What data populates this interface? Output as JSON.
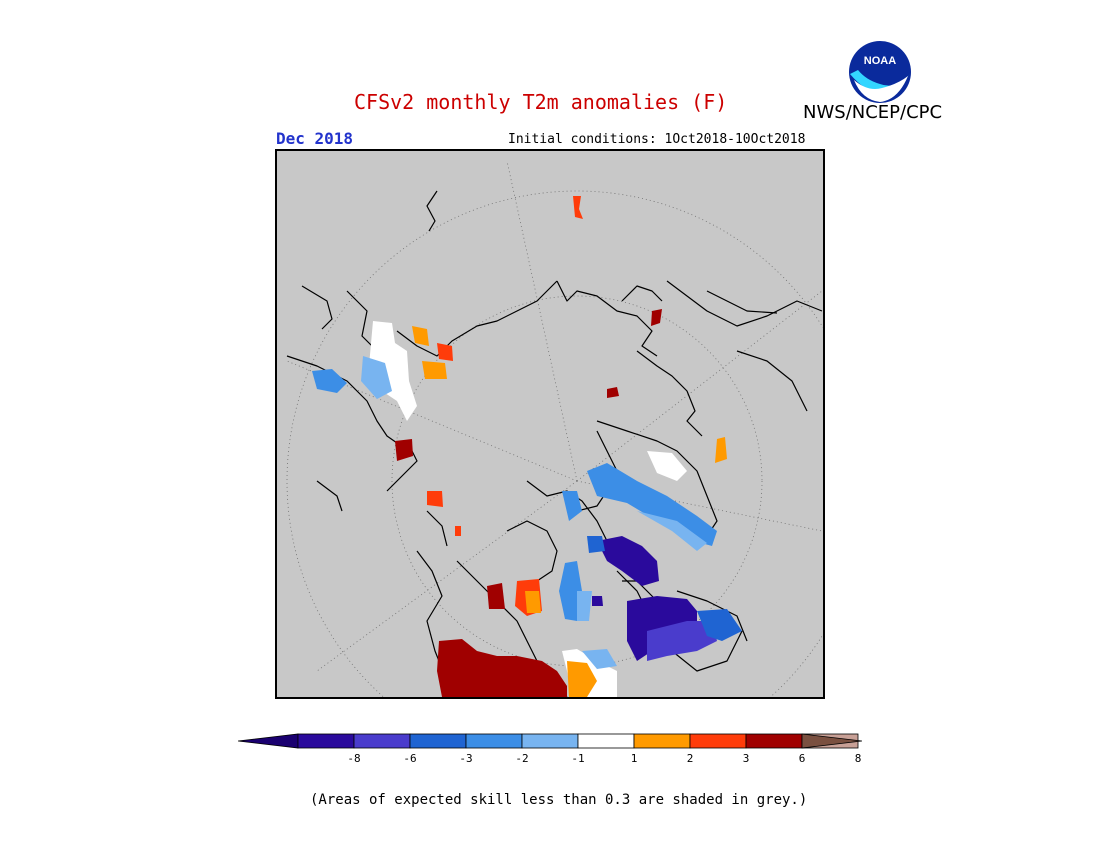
{
  "header": {
    "title": "CFSv2 monthly T2m anomalies (F)",
    "agency": "NWS/NCEP/CPC",
    "logo_text": "NOAA",
    "month": "Dec 2018",
    "initial_conditions": "Initial conditions: 1Oct2018-10Oct2018"
  },
  "legend": {
    "ticks": [
      "-8",
      "-6",
      "-3",
      "-2",
      "-1",
      "1",
      "2",
      "3",
      "6",
      "8"
    ],
    "colors": [
      "#2a0a9c",
      "#4a3ccc",
      "#1f64d2",
      "#3c8ee6",
      "#78b4f0",
      "#ffffff",
      "#ff9a00",
      "#ff3c0a",
      "#a00000",
      "#c8a096"
    ],
    "low_end_color": "#1a0070",
    "high_end_color": "#7a5040"
  },
  "map": {
    "background_color": "#c8c8c8",
    "projection": "north-polar-stereographic"
  },
  "footnote": "(Areas of expected skill less than 0.3 are shaded in grey.)"
}
